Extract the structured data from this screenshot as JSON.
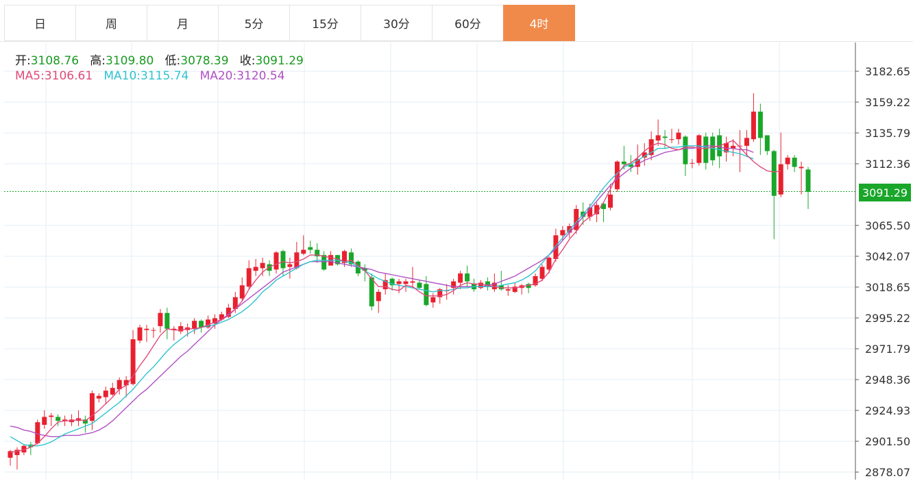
{
  "tabs": [
    {
      "label": "日",
      "active": false
    },
    {
      "label": "周",
      "active": false
    },
    {
      "label": "月",
      "active": false
    },
    {
      "label": "5分",
      "active": false
    },
    {
      "label": "15分",
      "active": false
    },
    {
      "label": "30分",
      "active": false
    },
    {
      "label": "60分",
      "active": false
    },
    {
      "label": "4时",
      "active": true
    }
  ],
  "ohlc": {
    "open_label": "开:",
    "open": "3108.76",
    "high_label": "高:",
    "high": "3109.80",
    "low_label": "低:",
    "low": "3078.39",
    "close_label": "收:",
    "close": "3091.29"
  },
  "ma": {
    "ma5_label": "MA5:",
    "ma5": "3106.61",
    "ma10_label": "MA10:",
    "ma10": "3115.74",
    "ma20_label": "MA20:",
    "ma20": "3120.54"
  },
  "current_price": "3091.29",
  "colors": {
    "up": "#e8212f",
    "down": "#1aa62a",
    "ma5": "#e04a7a",
    "ma10": "#2ec3cf",
    "ma20": "#b04fc4",
    "grid": "#e3eef5",
    "active_tab": "#f08a4b"
  },
  "chart_data": {
    "type": "candlestick",
    "y_ticks": [
      "3182.65",
      "3159.22",
      "3135.79",
      "3112.36",
      "3091.29",
      "3065.50",
      "3042.07",
      "3018.65",
      "2995.22",
      "2971.79",
      "2948.36",
      "2924.93",
      "2901.50",
      "2878.07"
    ],
    "ylim": [
      2875,
      3195
    ],
    "current_price": 3091.29,
    "candles": [
      [
        2889,
        2894,
        2885,
        2883,
        2895
      ],
      [
        2891,
        2895,
        2889,
        2880,
        2897
      ],
      [
        2893,
        2898,
        2893,
        2891,
        2899
      ],
      [
        2899,
        2897,
        2895,
        2891,
        2901
      ],
      [
        2900,
        2916,
        2899,
        2899,
        2918
      ],
      [
        2914,
        2920,
        2913,
        2911,
        2925
      ],
      [
        2920,
        2921,
        2918,
        2913,
        2923
      ],
      [
        2920,
        2917,
        2916,
        2913,
        2922
      ],
      [
        2917,
        2918,
        2915,
        2913,
        2921
      ],
      [
        2916,
        2918,
        2916,
        2913,
        2922
      ],
      [
        2917,
        2919,
        2916,
        2913,
        2925
      ],
      [
        2918,
        2915,
        2914,
        2908,
        2921
      ],
      [
        2917,
        2938,
        2915,
        2910,
        2940
      ],
      [
        2934,
        2936,
        2934,
        2931,
        2938
      ],
      [
        2935,
        2940,
        2934,
        2930,
        2943
      ],
      [
        2937,
        2942,
        2937,
        2936,
        2946
      ],
      [
        2941,
        2948,
        2941,
        2937,
        2950
      ],
      [
        2944,
        2948,
        2943,
        2935,
        2951
      ],
      [
        2945,
        2979,
        2944,
        2944,
        2986
      ],
      [
        2978,
        2988,
        2976,
        2976,
        2990
      ],
      [
        2986,
        2987,
        2985,
        2977,
        2990
      ],
      [
        2986,
        2986,
        2985,
        2980,
        2988
      ],
      [
        2989,
        2999,
        2986,
        2984,
        3002
      ],
      [
        2999,
        2987,
        2986,
        2979,
        3003
      ],
      [
        2986,
        2987,
        2985,
        2978,
        2989
      ],
      [
        2985,
        2989,
        2984,
        2983,
        2992
      ],
      [
        2986,
        2988,
        2986,
        2981,
        2991
      ],
      [
        2987,
        2993,
        2985,
        2983,
        2995
      ],
      [
        2993,
        2988,
        2987,
        2984,
        2994
      ],
      [
        2988,
        2994,
        2988,
        2987,
        2997
      ],
      [
        2991,
        2995,
        2989,
        2987,
        2998
      ],
      [
        2994,
        2998,
        2994,
        2993,
        3000
      ],
      [
        2996,
        3003,
        2996,
        2995,
        3006
      ],
      [
        3002,
        3011,
        3001,
        2999,
        3015
      ],
      [
        3010,
        3020,
        3009,
        3008,
        3026
      ],
      [
        3019,
        3033,
        3018,
        3017,
        3039
      ],
      [
        3031,
        3034,
        3031,
        3027,
        3040
      ],
      [
        3033,
        3037,
        3032,
        3027,
        3041
      ],
      [
        3036,
        3031,
        3030,
        3027,
        3039
      ],
      [
        3032,
        3045,
        3032,
        3029,
        3046
      ],
      [
        3046,
        3033,
        3032,
        3027,
        3047
      ],
      [
        3034,
        3036,
        3030,
        3025,
        3041
      ],
      [
        3033,
        3045,
        3034,
        3032,
        3053
      ],
      [
        3044,
        3047,
        3044,
        3043,
        3058
      ],
      [
        3049,
        3047,
        3045,
        3044,
        3054
      ],
      [
        3047,
        3042,
        3041,
        3037,
        3052
      ],
      [
        3043,
        3032,
        3031,
        3031,
        3046
      ],
      [
        3035,
        3043,
        3035,
        3035,
        3046
      ],
      [
        3043,
        3036,
        3036,
        3035,
        3043
      ],
      [
        3037,
        3046,
        3035,
        3034,
        3047
      ],
      [
        3045,
        3036,
        3034,
        3034,
        3048
      ],
      [
        3038,
        3029,
        3028,
        3027,
        3039
      ],
      [
        3033,
        3031,
        3030,
        3023,
        3036
      ],
      [
        3026,
        3004,
        3004,
        3001,
        3029
      ],
      [
        3008,
        3015,
        3007,
        2999,
        3017
      ],
      [
        3017,
        3024,
        3016,
        3013,
        3029
      ],
      [
        3025,
        3020,
        3020,
        3016,
        3026
      ],
      [
        3021,
        3023,
        3020,
        3014,
        3025
      ],
      [
        3021,
        3023,
        3020,
        3015,
        3025
      ],
      [
        3022,
        3023,
        3021,
        3018,
        3034
      ],
      [
        3022,
        3018,
        3017,
        3017,
        3024
      ],
      [
        3021,
        3005,
        3005,
        3004,
        3027
      ],
      [
        3007,
        3011,
        3005,
        3003,
        3014
      ],
      [
        3011,
        3017,
        3009,
        3006,
        3018
      ],
      [
        3016,
        3016,
        3011,
        3009,
        3021
      ],
      [
        3018,
        3023,
        3015,
        3013,
        3025
      ],
      [
        3022,
        3029,
        3021,
        3017,
        3031
      ],
      [
        3029,
        3023,
        3020,
        3019,
        3035
      ],
      [
        3021,
        3017,
        3017,
        3015,
        3025
      ],
      [
        3018,
        3022,
        3017,
        3017,
        3024
      ],
      [
        3023,
        3019,
        3018,
        3016,
        3026
      ],
      [
        3017,
        3022,
        3017,
        3015,
        3029
      ],
      [
        3020,
        3017,
        3016,
        3016,
        3031
      ],
      [
        3016,
        3017,
        3013,
        3012,
        3020
      ],
      [
        3015,
        3019,
        3015,
        3014,
        3022
      ],
      [
        3018,
        3020,
        3018,
        3013,
        3021
      ],
      [
        3021,
        3018,
        3018,
        3014,
        3022
      ],
      [
        3020,
        3027,
        3019,
        3019,
        3029
      ],
      [
        3025,
        3034,
        3023,
        3023,
        3036
      ],
      [
        3032,
        3041,
        3030,
        3029,
        3042
      ],
      [
        3040,
        3058,
        3039,
        3038,
        3063
      ],
      [
        3058,
        3062,
        3057,
        3054,
        3065
      ],
      [
        3060,
        3065,
        3061,
        3056,
        3067
      ],
      [
        3062,
        3078,
        3061,
        3059,
        3081
      ],
      [
        3076,
        3072,
        3071,
        3066,
        3083
      ],
      [
        3072,
        3079,
        3072,
        3069,
        3082
      ],
      [
        3074,
        3081,
        3071,
        3068,
        3083
      ],
      [
        3082,
        3078,
        3075,
        3068,
        3083
      ],
      [
        3079,
        3089,
        3078,
        3077,
        3097
      ],
      [
        3093,
        3114,
        3092,
        3091,
        3115
      ],
      [
        3114,
        3112,
        3111,
        3108,
        3126
      ],
      [
        3112,
        3110,
        3108,
        3106,
        3119
      ],
      [
        3110,
        3116,
        3109,
        3104,
        3127
      ],
      [
        3117,
        3121,
        3116,
        3111,
        3128
      ],
      [
        3119,
        3131,
        3118,
        3115,
        3137
      ],
      [
        3130,
        3134,
        3128,
        3126,
        3146
      ],
      [
        3133,
        3132,
        3130,
        3124,
        3138
      ],
      [
        3131,
        3131,
        3129,
        3128,
        3139
      ],
      [
        3131,
        3136,
        3130,
        3127,
        3139
      ],
      [
        3133,
        3112,
        3111,
        3103,
        3134
      ],
      [
        3113,
        3113,
        3110,
        3109,
        3116
      ],
      [
        3113,
        3134,
        3113,
        3111,
        3135
      ],
      [
        3133,
        3113,
        3112,
        3108,
        3136
      ],
      [
        3133,
        3115,
        3113,
        3111,
        3136
      ],
      [
        3134,
        3118,
        3117,
        3109,
        3139
      ],
      [
        3121,
        3128,
        3120,
        3114,
        3133
      ],
      [
        3124,
        3126,
        3121,
        3118,
        3131
      ],
      [
        3126,
        3126,
        3126,
        3106,
        3138
      ],
      [
        3126,
        3132,
        3125,
        3118,
        3138
      ],
      [
        3131,
        3152,
        3130,
        3129,
        3166
      ],
      [
        3152,
        3132,
        3128,
        3119,
        3158
      ],
      [
        3134,
        3122,
        3121,
        3119,
        3134
      ],
      [
        3122,
        3088,
        3087,
        3055,
        3123
      ],
      [
        3089,
        3112,
        3087,
        3087,
        3136
      ],
      [
        3112,
        3117,
        3110,
        3108,
        3119
      ],
      [
        3117,
        3110,
        3108,
        3106,
        3119
      ],
      [
        3109,
        3110,
        3107,
        3089,
        3114
      ],
      [
        3108,
        3091,
        3091,
        3078,
        3110
      ]
    ],
    "ma5": [
      2893,
      2894,
      2895,
      2897,
      2900,
      2905,
      2911,
      2916,
      2917,
      2917,
      2918,
      2917,
      2921,
      2925,
      2930,
      2935,
      2941,
      2944,
      2951,
      2959,
      2966,
      2974,
      2982,
      2987,
      2986,
      2986,
      2987,
      2987,
      2988,
      2990,
      2992,
      2994,
      2997,
      3002,
      3008,
      3017,
      3024,
      3030,
      3034,
      3036,
      3038,
      3037,
      3038,
      3040,
      3043,
      3043,
      3042,
      3041,
      3040,
      3038,
      3039,
      3035,
      3031,
      3025,
      3019,
      3019,
      3017,
      3016,
      3020,
      3019,
      3015,
      3012,
      3012,
      3012,
      3013,
      3016,
      3020,
      3022,
      3021,
      3021,
      3020,
      3019,
      3018,
      3018,
      3018,
      3019,
      3020,
      3021,
      3024,
      3030,
      3040,
      3047,
      3055,
      3061,
      3068,
      3072,
      3075,
      3083,
      3093,
      3104,
      3111,
      3113,
      3117,
      3122,
      3126,
      3128,
      3127,
      3124,
      3123,
      3125,
      3125,
      3124,
      3124,
      3125,
      3126,
      3128,
      3130,
      3125,
      3119,
      3114,
      3110,
      3107,
      3106,
      3107
    ],
    "ma10": [
      2905,
      2902,
      2899,
      2898,
      2898,
      2899,
      2901,
      2904,
      2907,
      2909,
      2911,
      2913,
      2915,
      2919,
      2923,
      2927,
      2931,
      2936,
      2941,
      2947,
      2953,
      2958,
      2964,
      2970,
      2975,
      2979,
      2983,
      2986,
      2988,
      2989,
      2990,
      2992,
      2994,
      2997,
      3000,
      3004,
      3009,
      3015,
      3019,
      3024,
      3027,
      3030,
      3033,
      3036,
      3038,
      3039,
      3039,
      3039,
      3039,
      3038,
      3037,
      3034,
      3031,
      3028,
      3025,
      3023,
      3021,
      3020,
      3019,
      3018,
      3017,
      3016,
      3015,
      3016,
      3016,
      3017,
      3018,
      3018,
      3019,
      3019,
      3019,
      3019,
      3020,
      3021,
      3022,
      3024,
      3027,
      3031,
      3037,
      3043,
      3050,
      3056,
      3062,
      3068,
      3074,
      3080,
      3087,
      3094,
      3100,
      3105,
      3110,
      3112,
      3115,
      3118,
      3121,
      3124,
      3124,
      3125,
      3125,
      3126,
      3126,
      3126,
      3125,
      3124,
      3123,
      3122,
      3121,
      3120,
      3118,
      3116
    ],
    "ma20": [
      2913,
      2912,
      2910,
      2909,
      2907,
      2906,
      2905,
      2905,
      2906,
      2906,
      2906,
      2907,
      2908,
      2910,
      2913,
      2917,
      2922,
      2927,
      2932,
      2937,
      2941,
      2946,
      2951,
      2956,
      2961,
      2966,
      2970,
      2975,
      2980,
      2985,
      2990,
      2994,
      2998,
      3002,
      3006,
      3010,
      3014,
      3018,
      3022,
      3026,
      3030,
      3032,
      3034,
      3036,
      3038,
      3038,
      3038,
      3038,
      3037,
      3036,
      3035,
      3034,
      3033,
      3032,
      3030,
      3029,
      3028,
      3027,
      3026,
      3025,
      3024,
      3023,
      3022,
      3021,
      3020,
      3019,
      3019,
      3019,
      3019,
      3019,
      3020,
      3021,
      3023,
      3025,
      3027,
      3030,
      3033,
      3036,
      3039,
      3043,
      3048,
      3054,
      3060,
      3066,
      3072,
      3078,
      3084,
      3090,
      3096,
      3101,
      3105,
      3109,
      3112,
      3115,
      3117,
      3119,
      3121,
      3122,
      3123,
      3124,
      3124,
      3125,
      3126,
      3126,
      3125,
      3124,
      3124,
      3123,
      3123,
      3121
    ]
  }
}
